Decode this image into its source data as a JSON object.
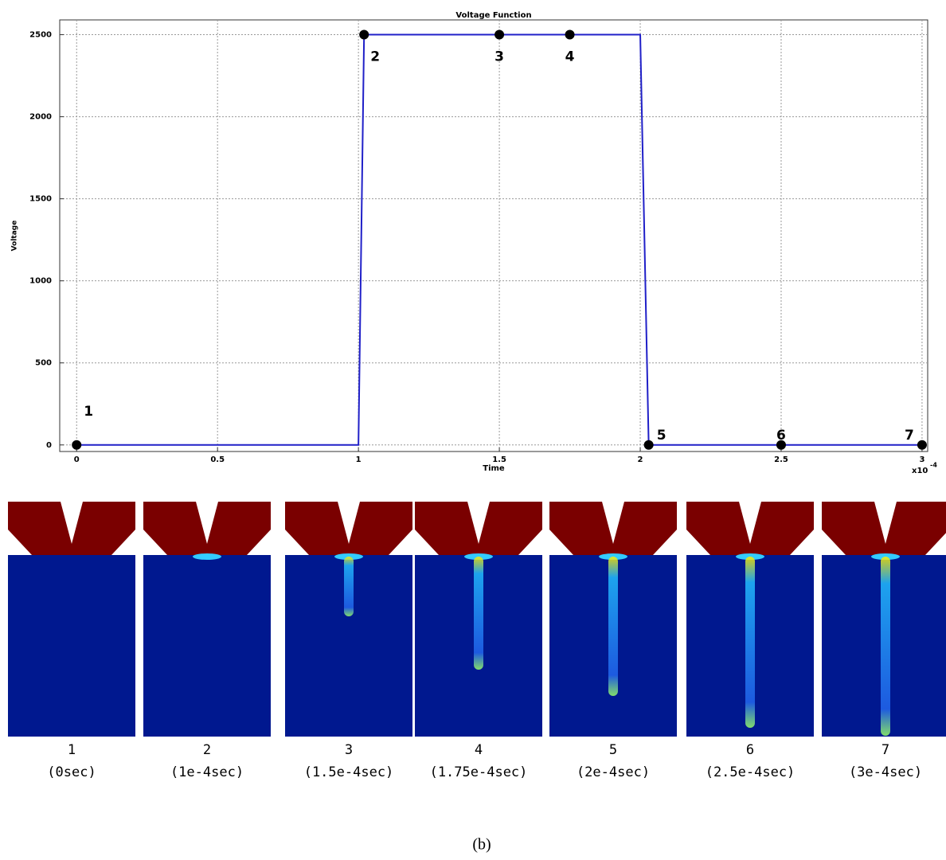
{
  "chart_data": {
    "type": "line",
    "title": "Voltage Function",
    "x_label": "Time",
    "y_label": "Voltage",
    "x_multiplier": "x10",
    "x_multiplier_exponent": "-4",
    "x": [
      0,
      1,
      1.02,
      2,
      2.03,
      3
    ],
    "values": [
      0,
      0,
      2500,
      2500,
      0,
      0
    ],
    "color": "#2020c8",
    "markers": {
      "x": [
        0,
        1.02,
        1.5,
        1.75,
        2.03,
        2.5,
        3
      ],
      "values": [
        0,
        2500,
        2500,
        2500,
        0,
        0,
        0
      ],
      "labels": [
        "1",
        "2",
        "3",
        "4",
        "5",
        "6",
        "7"
      ],
      "color": "#000000"
    },
    "xlim": [
      -0.06,
      3.02
    ],
    "ylim": [
      -40,
      2590
    ],
    "xticks": [
      0,
      0.5,
      1,
      1.5,
      2,
      2.5,
      3
    ],
    "yticks": [
      0,
      500,
      1000,
      1500,
      2000,
      2500
    ],
    "grid": true
  },
  "panels": [
    {
      "number": "1",
      "time": "(0sec)"
    },
    {
      "number": "2",
      "time": "(1e-4sec)"
    },
    {
      "number": "3",
      "time": "(1.5e-4sec)"
    },
    {
      "number": "4",
      "time": "(1.75e-4sec)"
    },
    {
      "number": "5",
      "time": "(2e-4sec)"
    },
    {
      "number": "6",
      "time": "(2.5e-4sec)"
    },
    {
      "number": "7",
      "time": "(3e-4sec)"
    }
  ],
  "caption": "(b)"
}
